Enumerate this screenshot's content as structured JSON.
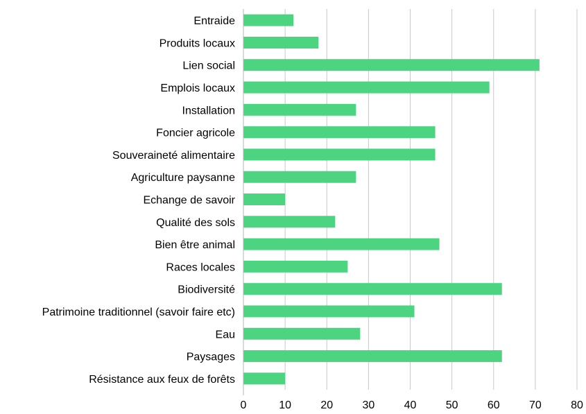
{
  "chart_data": {
    "type": "bar",
    "orientation": "horizontal",
    "categories": [
      "Entraide",
      "Produits locaux",
      "Lien social",
      "Emplois locaux",
      "Installation",
      "Foncier agricole",
      "Souveraineté alimentaire",
      "Agriculture paysanne",
      "Echange de savoir",
      "Qualité des sols",
      "Bien être animal",
      "Races locales",
      "Biodiversité",
      "Patrimoine traditionnel (savoir faire etc)",
      "Eau",
      "Paysages",
      "Résistance aux feux de forêts"
    ],
    "values": [
      12,
      18,
      71,
      59,
      27,
      46,
      46,
      27,
      10,
      22,
      47,
      25,
      62,
      41,
      28,
      62,
      10
    ],
    "xlim": [
      0,
      80
    ],
    "xticks": [
      0,
      10,
      20,
      30,
      40,
      50,
      60,
      70,
      80
    ],
    "grid": true,
    "legend": "none",
    "bar_color": "#4cd480"
  }
}
